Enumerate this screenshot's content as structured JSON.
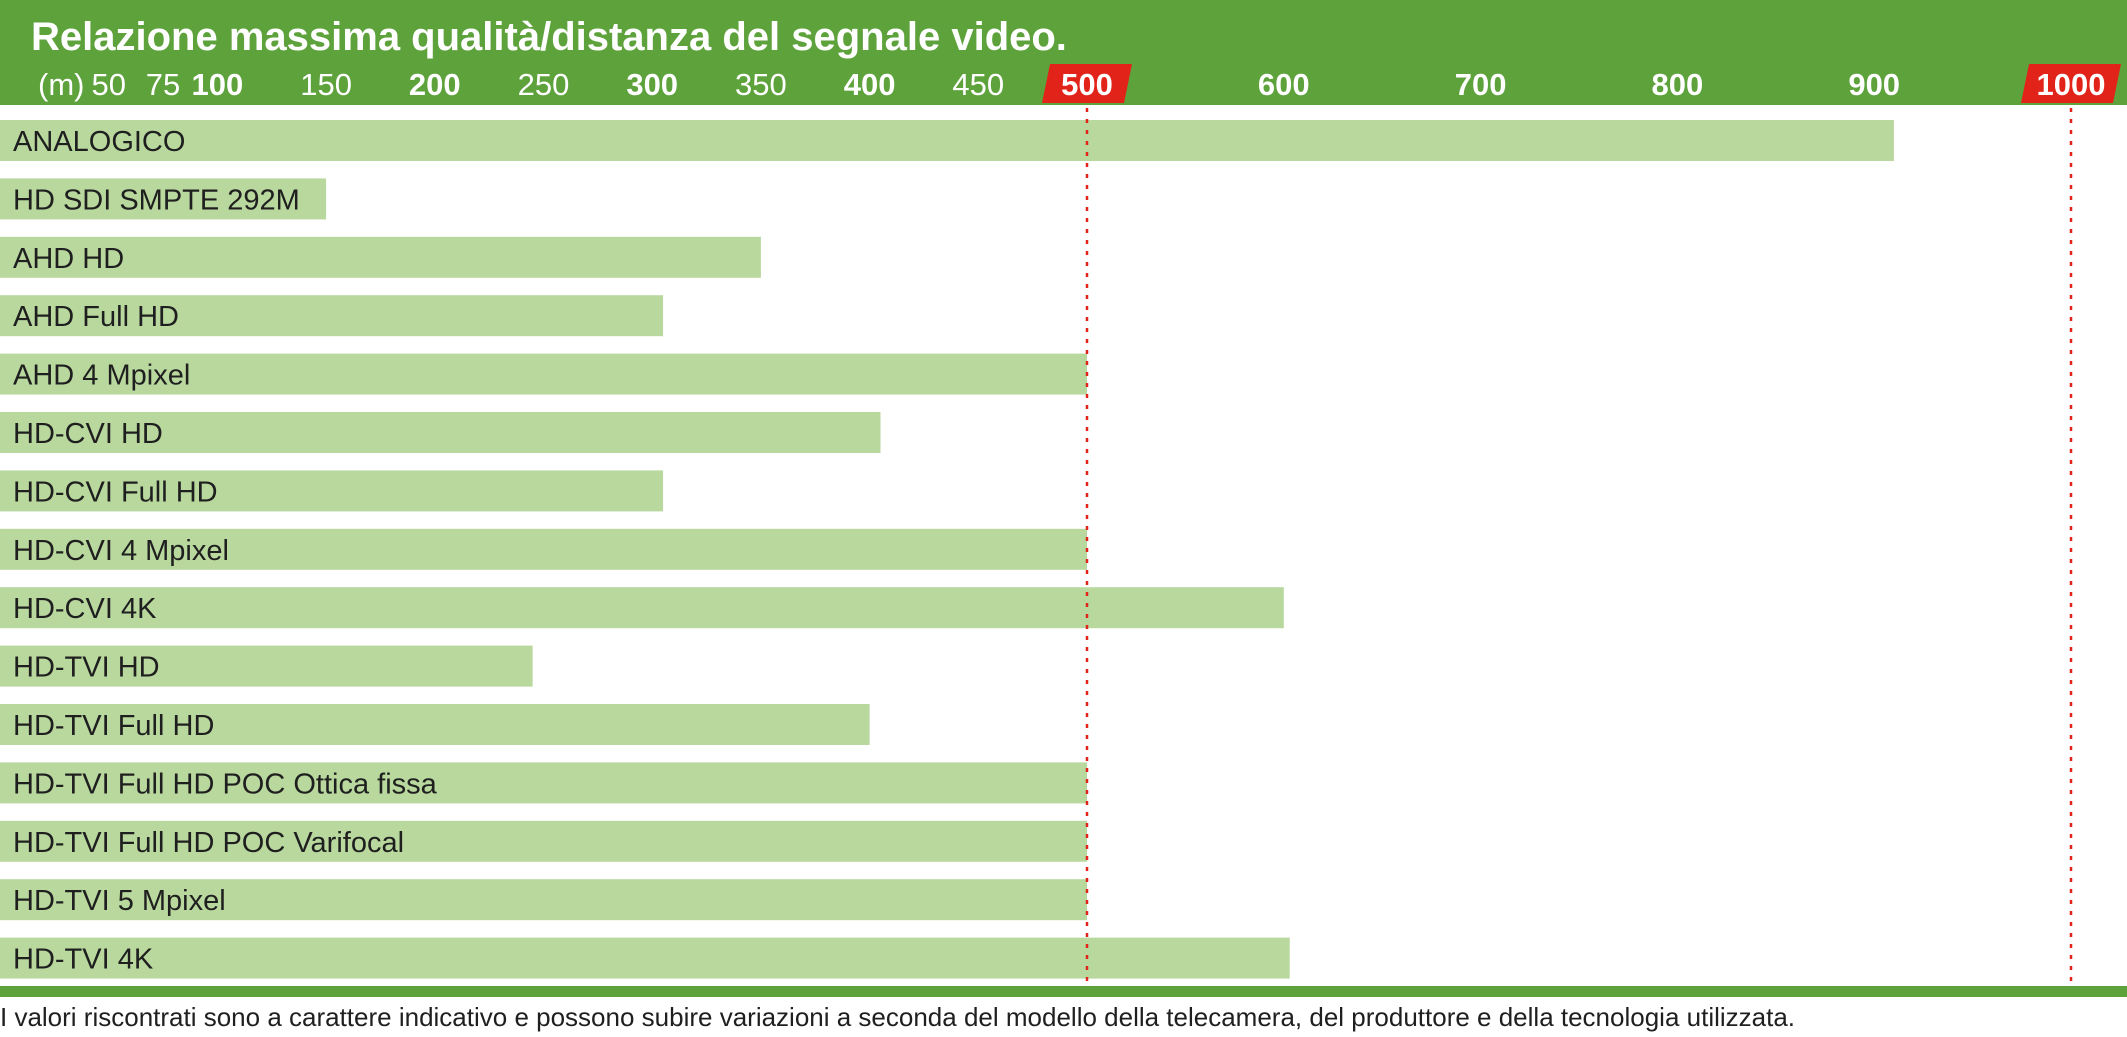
{
  "chart_data": {
    "type": "bar",
    "orientation": "horizontal",
    "title": "Relazione massima qualità/distanza del segnale video.",
    "unit_label": "(m)",
    "xlim": [
      0,
      1000
    ],
    "ticks": [
      {
        "value": 50,
        "label": "50",
        "major": false
      },
      {
        "value": 75,
        "label": "75",
        "major": false
      },
      {
        "value": 100,
        "label": "100",
        "major": true
      },
      {
        "value": 150,
        "label": "150",
        "major": false
      },
      {
        "value": 200,
        "label": "200",
        "major": true
      },
      {
        "value": 250,
        "label": "250",
        "major": false
      },
      {
        "value": 300,
        "label": "300",
        "major": true
      },
      {
        "value": 350,
        "label": "350",
        "major": false
      },
      {
        "value": 400,
        "label": "400",
        "major": true
      },
      {
        "value": 450,
        "label": "450",
        "major": false
      },
      {
        "value": 500,
        "label": "500",
        "major": true,
        "highlight": true
      },
      {
        "value": 600,
        "label": "600",
        "major": true
      },
      {
        "value": 700,
        "label": "700",
        "major": true
      },
      {
        "value": 800,
        "label": "800",
        "major": true
      },
      {
        "value": 900,
        "label": "900",
        "major": true
      },
      {
        "value": 1000,
        "label": "1000",
        "major": true,
        "highlight": true
      }
    ],
    "reference_lines": [
      500,
      1000
    ],
    "categories": [
      "ANALOGICO",
      "HD SDI SMPTE 292M",
      "AHD HD",
      "AHD Full HD",
      "AHD 4 Mpixel",
      "HD-CVI HD",
      "HD-CVI Full HD",
      "HD-CVI 4 Mpixel",
      "HD-CVI 4K",
      "HD-TVI HD",
      "HD-TVI Full HD",
      "HD-TVI Full HD POC Ottica fissa",
      "HD-TVI Full HD POC Varifocal",
      "HD-TVI 5 Mpixel",
      "HD-TVI 4K"
    ],
    "values": [
      910,
      150,
      350,
      305,
      500,
      405,
      305,
      500,
      600,
      245,
      400,
      500,
      500,
      500,
      603
    ],
    "grid": false,
    "legend": "none"
  },
  "colors": {
    "header": "#5ea23c",
    "bar": "#b8d89e",
    "highlight": "#e2231a",
    "reference_line": "#e2231a"
  },
  "footnote": "I valori riscontrati sono a carattere indicativo e possono subire variazioni a seconda del modello della telecamera, del produttore e della tecnologia utilizzata."
}
